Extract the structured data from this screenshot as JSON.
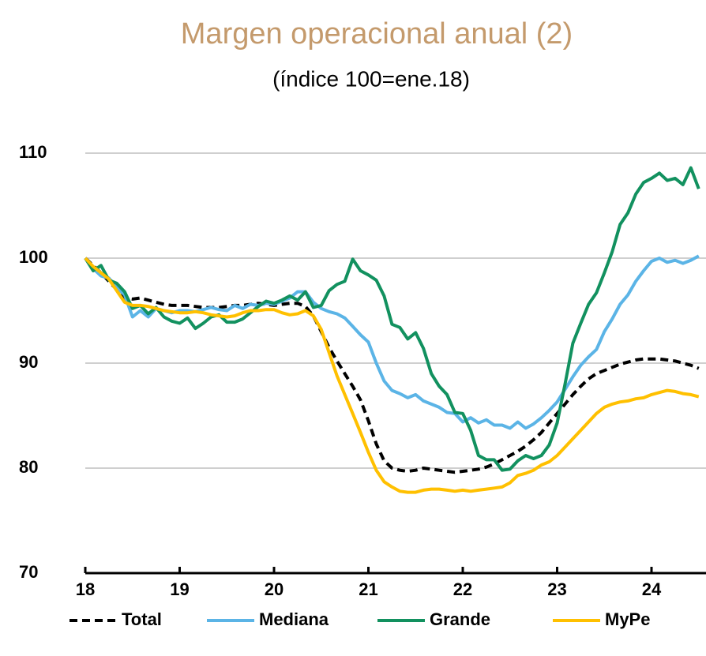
{
  "chart_data": {
    "type": "line",
    "title": "Margen operacional anual (2)",
    "subtitle": "(índice 100=ene.18)",
    "categories": [
      "18",
      null,
      null,
      null,
      null,
      null,
      null,
      null,
      null,
      null,
      null,
      null,
      "19",
      null,
      null,
      null,
      null,
      null,
      null,
      null,
      null,
      null,
      null,
      null,
      "20",
      null,
      null,
      null,
      null,
      null,
      null,
      null,
      null,
      null,
      null,
      null,
      "21",
      null,
      null,
      null,
      null,
      null,
      null,
      null,
      null,
      null,
      null,
      null,
      "22",
      null,
      null,
      null,
      null,
      null,
      null,
      null,
      null,
      null,
      null,
      null,
      "23",
      null,
      null,
      null,
      null,
      null,
      null,
      null,
      null,
      null,
      null,
      null,
      "24",
      null,
      null,
      null,
      null,
      null,
      null
    ],
    "series": [
      {
        "name": "Total",
        "color": "#000000",
        "dashed": true,
        "values": [
          100,
          99.3,
          98.6,
          97.8,
          97,
          96.2,
          96.1,
          96.2,
          96,
          95.8,
          95.6,
          95.5,
          95.5,
          95.5,
          95.4,
          95.3,
          95.3,
          95.3,
          95.4,
          95.5,
          95.5,
          95.6,
          95.7,
          95.6,
          95.5,
          95.6,
          95.7,
          95.7,
          95.4,
          94.5,
          93,
          91.5,
          90.2,
          89,
          87.8,
          86.5,
          84.5,
          82.3,
          80.7,
          80,
          79.8,
          79.7,
          79.8,
          80,
          79.9,
          79.8,
          79.7,
          79.6,
          79.7,
          79.8,
          79.9,
          80.1,
          80.4,
          80.8,
          81.2,
          81.6,
          82.1,
          82.7,
          83.4,
          84.3,
          85.2,
          86.1,
          87,
          87.8,
          88.5,
          89,
          89.3,
          89.6,
          89.9,
          90.1,
          90.3,
          90.4,
          90.4,
          90.4,
          90.3,
          90.2,
          90,
          89.8,
          89.5
        ]
      },
      {
        "name": "Mediana",
        "color": "#5bb4e6",
        "values": [
          100,
          99,
          98.3,
          98.1,
          97.2,
          96.5,
          94.4,
          95,
          94.4,
          95.2,
          95,
          94.8,
          95,
          95,
          94.9,
          95.1,
          95.3,
          95.1,
          95,
          95.5,
          95.2,
          95.6,
          95.5,
          95.7,
          95.6,
          95.9,
          96.2,
          96.8,
          96.8,
          95.8,
          95.2,
          94.9,
          94.7,
          94.3,
          93.5,
          92.7,
          92,
          90,
          88.3,
          87.4,
          87.1,
          86.7,
          87,
          86.4,
          86.1,
          85.8,
          85.3,
          85.2,
          84.4,
          84.8,
          84.3,
          84.6,
          84.1,
          84.1,
          83.8,
          84.4,
          83.8,
          84.2,
          84.8,
          85.5,
          86.3,
          87.5,
          88.7,
          89.8,
          90.6,
          91.3,
          93,
          94.2,
          95.6,
          96.5,
          97.8,
          98.8,
          99.7,
          100,
          99.6,
          99.8,
          99.5,
          99.8,
          100.2
        ]
      },
      {
        "name": "Grande",
        "color": "#12915f",
        "values": [
          100,
          98.8,
          99.3,
          97.9,
          97.6,
          96.8,
          95.2,
          95.5,
          94.7,
          95.3,
          94.4,
          94,
          93.8,
          94.3,
          93.3,
          93.8,
          94.4,
          94.6,
          93.9,
          93.9,
          94.2,
          94.8,
          95.4,
          95.9,
          95.7,
          96,
          96.4,
          96,
          96.8,
          95.3,
          95.5,
          96.9,
          97.5,
          97.8,
          99.9,
          98.8,
          98.4,
          97.9,
          96.4,
          93.7,
          93.4,
          92.3,
          92.9,
          91.4,
          89,
          87.8,
          87,
          85.3,
          85.2,
          83.6,
          81.2,
          80.8,
          80.8,
          79.8,
          79.9,
          80.7,
          81.2,
          80.9,
          81.2,
          82.2,
          84.3,
          88,
          91.9,
          93.8,
          95.6,
          96.7,
          98.6,
          100.6,
          103.2,
          104.3,
          106.1,
          107.2,
          107.6,
          108.1,
          107.4,
          107.6,
          107,
          108.6,
          106.6
        ]
      },
      {
        "name": "MyPe",
        "color": "#ffc000",
        "values": [
          100,
          99.2,
          98.6,
          98,
          96.9,
          95.8,
          95.5,
          95.5,
          95.4,
          95.2,
          95,
          94.9,
          94.8,
          94.8,
          94.9,
          94.8,
          94.6,
          94.5,
          94.4,
          94.5,
          94.8,
          95,
          95,
          95.1,
          95.1,
          94.8,
          94.6,
          94.7,
          95,
          94.5,
          93.2,
          91,
          88.8,
          87,
          85.2,
          83.4,
          81.5,
          79.8,
          78.7,
          78.2,
          77.8,
          77.7,
          77.7,
          77.9,
          78,
          78,
          77.9,
          77.8,
          77.9,
          77.8,
          77.9,
          78,
          78.1,
          78.2,
          78.6,
          79.3,
          79.5,
          79.8,
          80.3,
          80.6,
          81.2,
          82,
          82.8,
          83.6,
          84.4,
          85.2,
          85.8,
          86.1,
          86.3,
          86.4,
          86.6,
          86.7,
          87,
          87.2,
          87.4,
          87.3,
          87.1,
          87,
          86.8
        ]
      }
    ],
    "ylim": [
      70,
      110
    ],
    "yticks": [
      70,
      80,
      90,
      100,
      110
    ],
    "grid": true,
    "legend": "bottom",
    "title_color": "#c49a6c"
  }
}
